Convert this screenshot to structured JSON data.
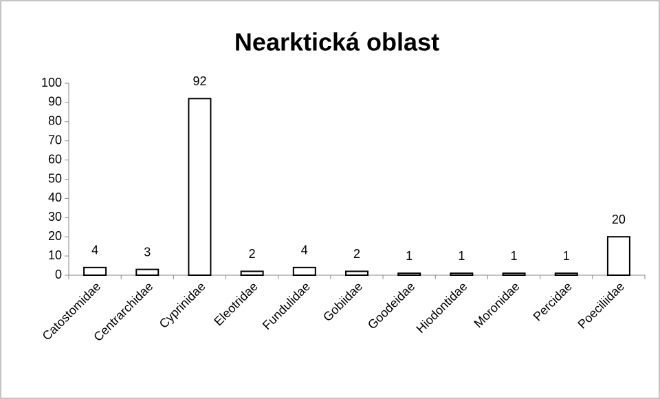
{
  "chart_data": {
    "type": "bar",
    "title": "Nearktická oblast",
    "categories": [
      "Catostomidae",
      "Centrarchidae",
      "Cyprinidae",
      "Eleotridae",
      "Fundulidae",
      "Gobiidae",
      "Goodeidae",
      "Hiodontidae",
      "Moronidae",
      "Percidae",
      "Poeciliidae"
    ],
    "values": [
      4,
      3,
      92,
      2,
      4,
      2,
      1,
      1,
      1,
      1,
      20
    ],
    "color": "#ffffff",
    "ylim": [
      0,
      100
    ],
    "yticks": [
      0,
      10,
      20,
      30,
      40,
      50,
      60,
      70,
      80,
      90,
      100
    ],
    "grid": false
  }
}
